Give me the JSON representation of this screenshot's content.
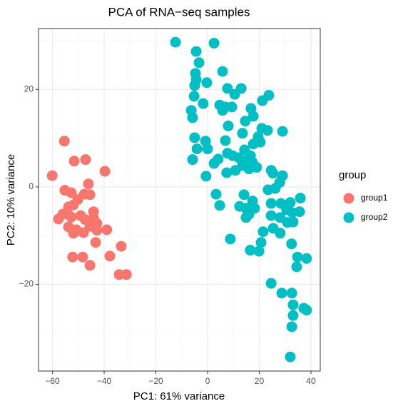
{
  "chart_data": {
    "type": "scatter",
    "title": "PCA of RNA−seq samples",
    "x_label": "PC1: 61% variance",
    "y_label": "PC2: 10% variance",
    "legend_title": "group",
    "legend": "right",
    "grid": true,
    "xlim": [
      -65.4,
      43.6
    ],
    "ylim": [
      -37.8,
      32.5
    ],
    "xticks": [
      {
        "value": -60,
        "label": "−60"
      },
      {
        "value": -40,
        "label": "−40"
      },
      {
        "value": -20,
        "label": "−20"
      },
      0,
      20,
      40
    ],
    "yticks": [
      {
        "value": -20,
        "label": "−20"
      },
      0,
      20
    ],
    "x_minor_grid": [
      -50,
      -30,
      -10,
      10,
      30
    ],
    "y_minor_grid": [
      -30,
      -10,
      10,
      30
    ],
    "series": [
      {
        "name": "group1",
        "color": "#F8766D",
        "x": [
          -55.4,
          -60.1,
          -51.6,
          -47.2,
          -39.7,
          -46.1,
          -55.2,
          -52.7,
          -47.7,
          -45.5,
          -50.2,
          -53.8,
          -51.9,
          -57.7,
          -54.3,
          -52.7,
          -49.1,
          -44.1,
          -44.1,
          -47.4,
          -42.8,
          -53.8,
          -50.8,
          -51.9,
          -48.0,
          -42.8,
          -39.0,
          -43.3,
          -33.4,
          -52.2,
          -48.3,
          -37.8,
          -45.5,
          -34.2,
          -31.4,
          -56.0,
          -45.5
        ],
        "y": [
          9.4,
          2.3,
          5.3,
          5.6,
          3.2,
          0.6,
          -0.7,
          -1.2,
          -1.5,
          -1.6,
          -2.6,
          -4.1,
          -3.7,
          -6.6,
          -5.3,
          -6.2,
          -5.9,
          -5.1,
          -6.4,
          -6.7,
          -7.5,
          -8.2,
          -8.8,
          -9.5,
          -9.4,
          -8.9,
          -8.8,
          -11.4,
          -12.2,
          -14.4,
          -14.4,
          -14.2,
          -16.1,
          -18.0,
          -18.0,
          -5.6,
          -8.1
        ]
      },
      {
        "name": "group2",
        "color": "#00BFC4",
        "x": [
          -12.4,
          2.5,
          -4.4,
          -3.3,
          -4.7,
          5.8,
          -4.4,
          -0.3,
          -5.0,
          7.7,
          13.0,
          10.5,
          23.7,
          21.2,
          -5.2,
          -1.7,
          4.7,
          6.9,
          9.4,
          5.8,
          -6.3,
          16.8,
          -5.8,
          17.7,
          14.6,
          8.0,
          21.0,
          23.2,
          29.0,
          13.5,
          19.6,
          -5.0,
          -0.8,
          6.9,
          17.7,
          20.4,
          -4.1,
          0,
          14.3,
          7.7,
          9.7,
          16.6,
          12.1,
          15.2,
          4.1,
          -5.8,
          2.5,
          17.4,
          13.5,
          16.0,
          19.0,
          10.8,
          7.4,
          24.6,
          25.3,
          -0.6,
          29.0,
          27.9,
          23.4,
          26.2,
          3.3,
          14.1,
          35.9,
          17.4,
          24.6,
          28.4,
          32.0,
          4.7,
          12.4,
          14.9,
          18.2,
          30.6,
          35.6,
          16.0,
          24.6,
          32.8,
          28.1,
          14.9,
          30.9,
          33.1,
          25.4,
          21.5,
          8.8,
          28.1,
          20.7,
          32.5,
          16.5,
          19.9,
          34.8,
          38.3,
          34.5,
          24.6,
          28.7,
          32.6,
          33.1,
          37.2,
          38.3,
          33.1,
          32.6,
          32.0
        ],
        "y": [
          29.7,
          29.5,
          27.8,
          25.5,
          23.3,
          23.7,
          22.0,
          21.4,
          20.8,
          20.2,
          20.2,
          19.0,
          18.8,
          17.7,
          18.6,
          17.1,
          16.8,
          16.4,
          16.4,
          15.7,
          15.7,
          16.1,
          14.2,
          14.5,
          13.5,
          12.5,
          12.0,
          11.6,
          11.4,
          11.0,
          10.3,
          10.1,
          9.4,
          9.5,
          8.8,
          9.2,
          7.8,
          7.8,
          7.6,
          6.9,
          6.4,
          6.4,
          6.0,
          5.4,
          5.7,
          5.6,
          4.8,
          5.0,
          4.4,
          3.7,
          4.0,
          3.4,
          2.9,
          3.4,
          2.8,
          2.2,
          2.3,
          0.9,
          -0.6,
          -0.3,
          -1.5,
          -1.6,
          -2.3,
          -2.9,
          -3.4,
          -3.4,
          -3.2,
          -3.8,
          -4.0,
          -4.4,
          -4.4,
          -4.7,
          -5.1,
          -5.6,
          -5.9,
          -5.3,
          -6.3,
          -6.3,
          -7.3,
          -7.2,
          -8.5,
          -9.2,
          -10.7,
          -9.5,
          -11.4,
          -11.7,
          -13.0,
          -13.2,
          -14.4,
          -14.7,
          -16.4,
          -19.8,
          -21.8,
          -21.8,
          -24.2,
          -24.9,
          -25.3,
          -26.4,
          -28.7,
          -34.9
        ]
      }
    ]
  }
}
